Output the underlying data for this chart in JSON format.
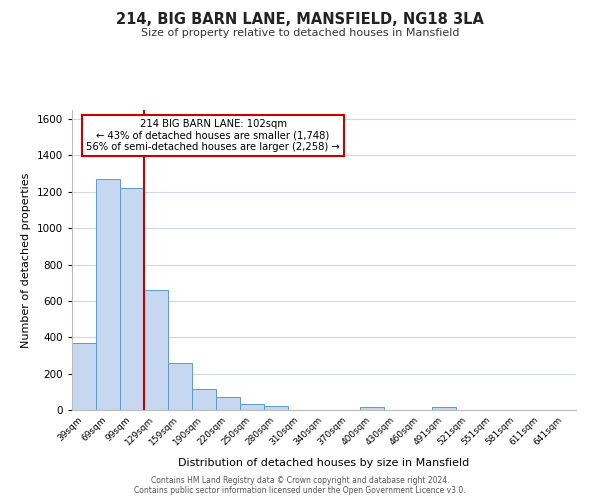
{
  "title": "214, BIG BARN LANE, MANSFIELD, NG18 3LA",
  "subtitle": "Size of property relative to detached houses in Mansfield",
  "xlabel": "Distribution of detached houses by size in Mansfield",
  "ylabel": "Number of detached properties",
  "bar_labels": [
    "39sqm",
    "69sqm",
    "99sqm",
    "129sqm",
    "159sqm",
    "190sqm",
    "220sqm",
    "250sqm",
    "280sqm",
    "310sqm",
    "340sqm",
    "370sqm",
    "400sqm",
    "430sqm",
    "460sqm",
    "491sqm",
    "521sqm",
    "551sqm",
    "581sqm",
    "611sqm",
    "641sqm"
  ],
  "bar_values": [
    370,
    1270,
    1220,
    660,
    260,
    115,
    70,
    35,
    20,
    0,
    0,
    0,
    15,
    0,
    0,
    15,
    0,
    0,
    0,
    0,
    0
  ],
  "bar_color": "#c5d8f0",
  "bar_edge_color": "#5b9bd5",
  "bar_width": 1.0,
  "vline_x": 2.5,
  "vline_color": "#cc0000",
  "annotation_title": "214 BIG BARN LANE: 102sqm",
  "annotation_line1": "← 43% of detached houses are smaller (1,748)",
  "annotation_line2": "56% of semi-detached houses are larger (2,258) →",
  "annotation_box_color": "#ffffff",
  "annotation_box_edge": "#cc0000",
  "ylim": [
    0,
    1650
  ],
  "yticks": [
    0,
    200,
    400,
    600,
    800,
    1000,
    1200,
    1400,
    1600
  ],
  "grid_color": "#d0d8e8",
  "background_color": "#ffffff",
  "footer1": "Contains HM Land Registry data © Crown copyright and database right 2024.",
  "footer2": "Contains public sector information licensed under the Open Government Licence v3.0."
}
